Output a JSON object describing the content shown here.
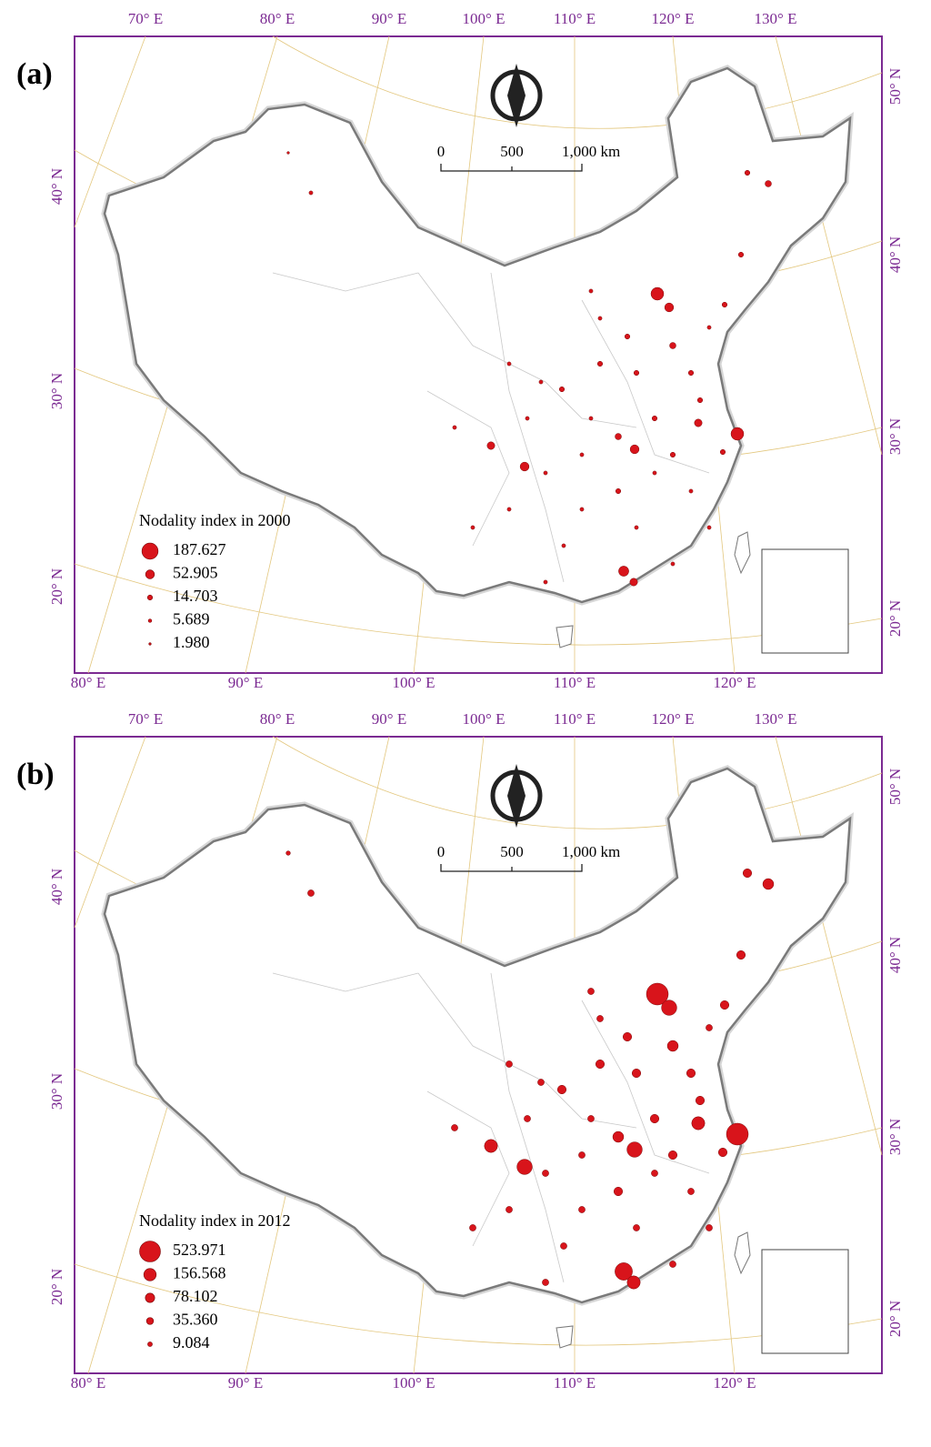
{
  "panels": [
    {
      "label": "(a)",
      "legend": {
        "title": "Nodality index in 2000",
        "items": [
          187.627,
          52.905,
          14.703,
          5.689,
          {
            "value": 1.98,
            "label": "1.980"
          }
        ]
      }
    },
    {
      "label": "(b)",
      "legend": {
        "title": "Nodality index in 2012",
        "items": [
          523.971,
          156.568,
          78.102,
          {
            "value": 35.36,
            "label": "35.360"
          },
          9.084
        ]
      }
    }
  ],
  "graticule": {
    "top": [
      "70° E",
      "80° E",
      "90° E",
      "100° E",
      "110° E",
      "120° E",
      "130° E"
    ],
    "bottom": [
      "80° E",
      "90° E",
      "100° E",
      "110° E",
      "120° E"
    ],
    "left": [
      "40° N",
      "30° N",
      "20° N"
    ],
    "right": [
      "50° N",
      "40° N",
      "30° N",
      "20° N"
    ]
  },
  "scale_bar": {
    "labels": [
      "0",
      "500",
      "1,000 km"
    ]
  }
}
